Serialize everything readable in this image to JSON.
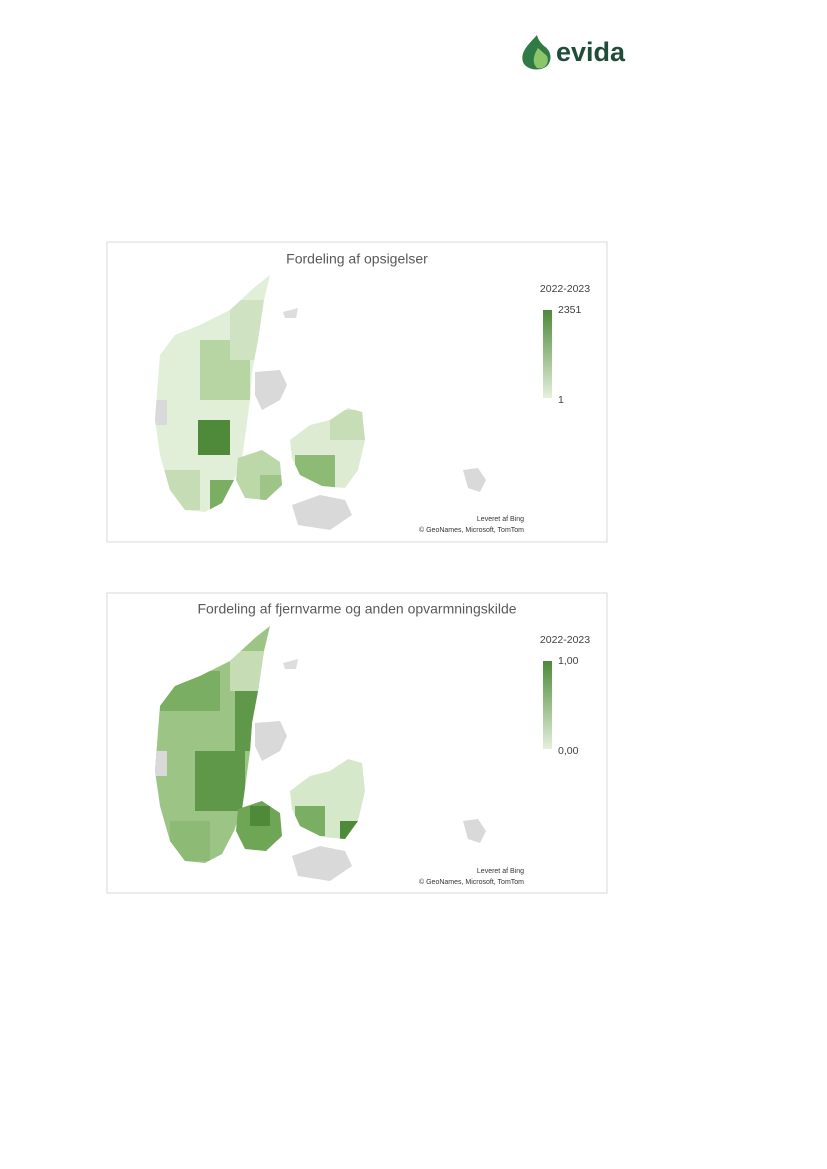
{
  "header": {
    "logo_text": "evida"
  },
  "figures": [
    {
      "title": "Fordeling af opsigelser",
      "legend_title": "2022-2023",
      "legend_max": "2351",
      "legend_min": "1",
      "credit_line1": "Leveret af Bing",
      "credit_line2": "© GeoNames, Microsoft, TomTom"
    },
    {
      "title": "Fordeling af fjernvarme og anden opvarmningskilde",
      "legend_title": "2022-2023",
      "legend_max": "1,00",
      "legend_min": "0,00",
      "credit_line1": "Leveret af Bing",
      "credit_line2": "© GeoNames, Microsoft, TomTom"
    }
  ]
}
